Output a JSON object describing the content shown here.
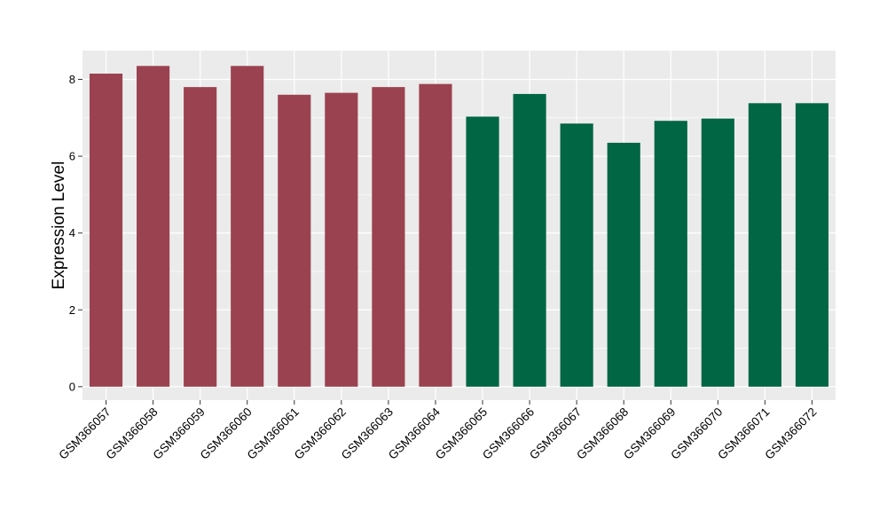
{
  "chart_data": {
    "type": "bar",
    "title": "",
    "xlabel": "",
    "ylabel": "Expression Level",
    "ylim": [
      -0.35,
      8.75
    ],
    "yticks": [
      0,
      2,
      4,
      6,
      8
    ],
    "grid": true,
    "legend": "none",
    "colors": {
      "panel_background": "#ebebeb",
      "gridline": "#ffffff",
      "axis_text": "#000000",
      "tick_mark": "#333333",
      "group_1": "#9b4250",
      "group_2": "#006644"
    },
    "categories": [
      "GSM366057",
      "GSM366058",
      "GSM366059",
      "GSM366060",
      "GSM366061",
      "GSM366062",
      "GSM366063",
      "GSM366064",
      "GSM366065",
      "GSM366066",
      "GSM366067",
      "GSM366068",
      "GSM366069",
      "GSM366070",
      "GSM366071",
      "GSM366072"
    ],
    "values": [
      8.15,
      8.35,
      7.8,
      8.35,
      7.6,
      7.65,
      7.8,
      7.88,
      7.03,
      7.62,
      6.85,
      6.35,
      6.92,
      6.98,
      7.38,
      7.38
    ],
    "groups": [
      1,
      1,
      1,
      1,
      1,
      1,
      1,
      1,
      2,
      2,
      2,
      2,
      2,
      2,
      2,
      2
    ]
  }
}
